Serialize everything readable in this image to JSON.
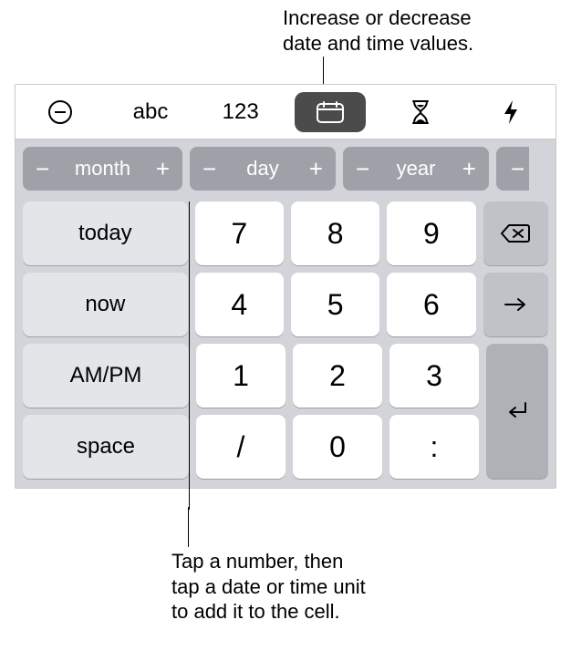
{
  "callouts": {
    "top": "Increase or decrease\ndate and time values.",
    "bottom": "Tap a number, then\ntap a date or time unit\nto add it to the cell."
  },
  "modebar": {
    "abc": "abc",
    "num": "123"
  },
  "steppers": {
    "month": "month",
    "day": "day",
    "year": "year",
    "minus": "−",
    "plus": "+"
  },
  "side_keys": {
    "today": "today",
    "now": "now",
    "ampm": "AM/PM",
    "space": "space"
  },
  "numpad": {
    "r1": [
      "7",
      "8",
      "9"
    ],
    "r2": [
      "4",
      "5",
      "6"
    ],
    "r3": [
      "1",
      "2",
      "3"
    ],
    "r4": [
      "/",
      "0",
      ":"
    ]
  },
  "colors": {
    "stepper_bg": "#9ea1a7",
    "tray_bg": "#d2d4d9",
    "side_key_bg": "#e3e5e8",
    "ctrl_key_bg": "#c0c2c7",
    "enter_key_bg": "#aeb1b6",
    "active_pill_bg": "#4b4b4b"
  }
}
